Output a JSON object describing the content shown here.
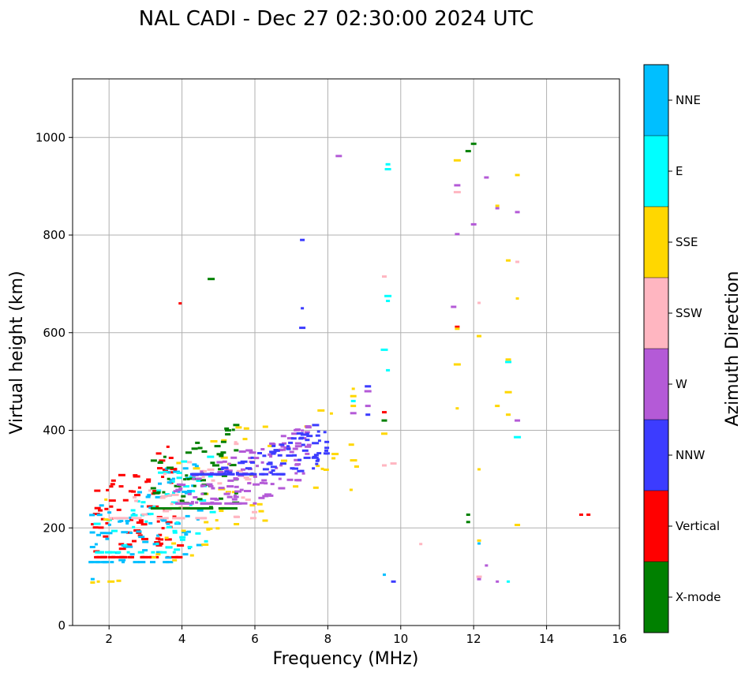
{
  "chart_data": {
    "type": "scatter",
    "title": "NAL CADI - Dec 27 02:30:00 2024 UTC",
    "xlabel": "Frequency (MHz)",
    "ylabel": "Virtual height (km)",
    "xlim": [
      1,
      16
    ],
    "ylim": [
      0,
      1120
    ],
    "xticks": [
      2,
      4,
      6,
      8,
      10,
      12,
      14,
      16
    ],
    "yticks": [
      0,
      200,
      400,
      600,
      800,
      1000
    ],
    "grid": true,
    "colorbar": {
      "label": "Azimuth Direction",
      "categories": [
        {
          "name": "X-mode",
          "color": "#008000"
        },
        {
          "name": "Vertical",
          "color": "#ff0000"
        },
        {
          "name": "NNW",
          "color": "#3c3cff"
        },
        {
          "name": "W",
          "color": "#b45ad7"
        },
        {
          "name": "SSW",
          "color": "#ffb6c1"
        },
        {
          "name": "SSE",
          "color": "#ffd700"
        },
        {
          "name": "E",
          "color": "#00ffff"
        },
        {
          "name": "NNE",
          "color": "#00bfff"
        }
      ]
    },
    "clusters": [
      {
        "direction": "Vertical",
        "freq": [
          1.5,
          4.0
        ],
        "height": [
          140,
          660
        ],
        "count": 110
      },
      {
        "direction": "NNE",
        "freq": [
          1.5,
          4.6
        ],
        "height": [
          130,
          500
        ],
        "count": 90
      },
      {
        "direction": "E",
        "freq": [
          1.6,
          5.0
        ],
        "height": [
          150,
          500
        ],
        "count": 60
      },
      {
        "direction": "SSE",
        "freq": [
          1.6,
          8.8
        ],
        "height": [
          90,
          520
        ],
        "count": 55
      },
      {
        "direction": "SSW",
        "freq": [
          2.0,
          6.0
        ],
        "height": [
          220,
          580
        ],
        "count": 55
      },
      {
        "direction": "X-mode",
        "freq": [
          3.2,
          5.5
        ],
        "height": [
          240,
          710
        ],
        "count": 110
      },
      {
        "direction": "W",
        "freq": [
          3.8,
          7.5
        ],
        "height": [
          250,
          470
        ],
        "count": 140
      },
      {
        "direction": "NNW",
        "freq": [
          4.3,
          8.0
        ],
        "height": [
          310,
          470
        ],
        "count": 120
      }
    ],
    "points": [
      {
        "f": 8.3,
        "h": 962,
        "d": "W"
      },
      {
        "f": 9.65,
        "h": 945,
        "d": "E"
      },
      {
        "f": 9.65,
        "h": 935,
        "d": "E"
      },
      {
        "f": 9.55,
        "h": 715,
        "d": "SSW"
      },
      {
        "f": 9.65,
        "h": 675,
        "d": "E"
      },
      {
        "f": 9.65,
        "h": 665,
        "d": "E"
      },
      {
        "f": 9.55,
        "h": 565,
        "d": "E"
      },
      {
        "f": 9.65,
        "h": 523,
        "d": "E"
      },
      {
        "f": 7.3,
        "h": 790,
        "d": "NNW"
      },
      {
        "f": 7.3,
        "h": 650,
        "d": "NNW"
      },
      {
        "f": 7.3,
        "h": 610,
        "d": "NNW"
      },
      {
        "f": 8.7,
        "h": 485,
        "d": "SSE"
      },
      {
        "f": 8.7,
        "h": 470,
        "d": "SSE"
      },
      {
        "f": 8.7,
        "h": 460,
        "d": "E"
      },
      {
        "f": 8.7,
        "h": 450,
        "d": "SSE"
      },
      {
        "f": 8.7,
        "h": 435,
        "d": "W"
      },
      {
        "f": 9.1,
        "h": 490,
        "d": "NNW"
      },
      {
        "f": 9.1,
        "h": 480,
        "d": "W"
      },
      {
        "f": 9.1,
        "h": 450,
        "d": "W"
      },
      {
        "f": 9.1,
        "h": 432,
        "d": "NNW"
      },
      {
        "f": 9.55,
        "h": 437,
        "d": "Vertical"
      },
      {
        "f": 9.55,
        "h": 420,
        "d": "X-mode"
      },
      {
        "f": 9.55,
        "h": 393,
        "d": "SSE"
      },
      {
        "f": 9.55,
        "h": 328,
        "d": "SSW"
      },
      {
        "f": 9.8,
        "h": 332,
        "d": "SSW"
      },
      {
        "f": 9.55,
        "h": 104,
        "d": "NNE"
      },
      {
        "f": 9.8,
        "h": 90,
        "d": "NNW"
      },
      {
        "f": 10.55,
        "h": 167,
        "d": "SSW"
      },
      {
        "f": 12.0,
        "h": 987,
        "d": "X-mode"
      },
      {
        "f": 11.85,
        "h": 972,
        "d": "X-mode"
      },
      {
        "f": 11.55,
        "h": 953,
        "d": "SSE"
      },
      {
        "f": 11.55,
        "h": 902,
        "d": "W"
      },
      {
        "f": 11.55,
        "h": 888,
        "d": "SSW"
      },
      {
        "f": 11.55,
        "h": 802,
        "d": "W"
      },
      {
        "f": 12.0,
        "h": 822,
        "d": "W"
      },
      {
        "f": 12.35,
        "h": 918,
        "d": "W"
      },
      {
        "f": 12.65,
        "h": 860,
        "d": "SSE"
      },
      {
        "f": 12.65,
        "h": 855,
        "d": "W"
      },
      {
        "f": 13.2,
        "h": 923,
        "d": "SSE"
      },
      {
        "f": 13.2,
        "h": 847,
        "d": "W"
      },
      {
        "f": 12.95,
        "h": 748,
        "d": "SSE"
      },
      {
        "f": 13.2,
        "h": 745,
        "d": "SSW"
      },
      {
        "f": 13.2,
        "h": 670,
        "d": "SSE"
      },
      {
        "f": 11.45,
        "h": 653,
        "d": "W"
      },
      {
        "f": 12.15,
        "h": 661,
        "d": "SSW"
      },
      {
        "f": 11.55,
        "h": 612,
        "d": "Vertical"
      },
      {
        "f": 11.55,
        "h": 608,
        "d": "SSE"
      },
      {
        "f": 12.15,
        "h": 593,
        "d": "SSE"
      },
      {
        "f": 11.55,
        "h": 535,
        "d": "SSE"
      },
      {
        "f": 11.55,
        "h": 445,
        "d": "SSE"
      },
      {
        "f": 12.95,
        "h": 545,
        "d": "SSE"
      },
      {
        "f": 12.95,
        "h": 540,
        "d": "E"
      },
      {
        "f": 12.95,
        "h": 478,
        "d": "SSE"
      },
      {
        "f": 12.65,
        "h": 450,
        "d": "SSE"
      },
      {
        "f": 12.95,
        "h": 432,
        "d": "SSE"
      },
      {
        "f": 13.2,
        "h": 420,
        "d": "W"
      },
      {
        "f": 13.2,
        "h": 386,
        "d": "E"
      },
      {
        "f": 12.15,
        "h": 320,
        "d": "SSE"
      },
      {
        "f": 11.85,
        "h": 227,
        "d": "X-mode"
      },
      {
        "f": 11.85,
        "h": 212,
        "d": "X-mode"
      },
      {
        "f": 13.2,
        "h": 206,
        "d": "SSE"
      },
      {
        "f": 12.15,
        "h": 174,
        "d": "SSE"
      },
      {
        "f": 12.15,
        "h": 168,
        "d": "NNE"
      },
      {
        "f": 12.35,
        "h": 123,
        "d": "W"
      },
      {
        "f": 12.15,
        "h": 95,
        "d": "W"
      },
      {
        "f": 12.15,
        "h": 100,
        "d": "SSW"
      },
      {
        "f": 12.65,
        "h": 90,
        "d": "W"
      },
      {
        "f": 12.95,
        "h": 90,
        "d": "E"
      },
      {
        "f": 14.95,
        "h": 227,
        "d": "Vertical"
      },
      {
        "f": 15.15,
        "h": 227,
        "d": "Vertical"
      },
      {
        "f": 3.95,
        "h": 660,
        "d": "Vertical"
      },
      {
        "f": 4.8,
        "h": 710,
        "d": "X-mode"
      },
      {
        "f": 1.55,
        "h": 95,
        "d": "NNE"
      },
      {
        "f": 1.55,
        "h": 88,
        "d": "SSE"
      }
    ]
  }
}
